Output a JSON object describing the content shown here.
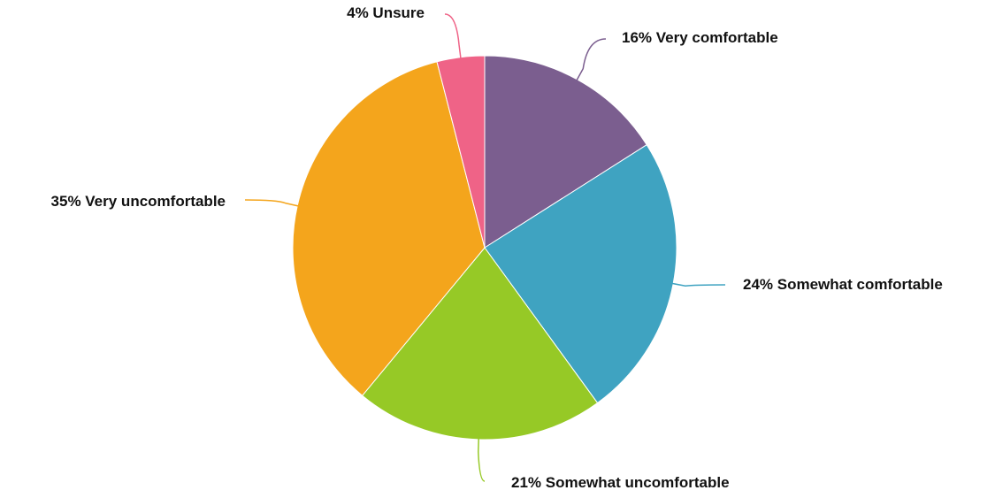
{
  "chart_data": {
    "type": "pie",
    "title": "",
    "start_angle_deg": 0,
    "direction": "clockwise",
    "slices": [
      {
        "name": "Very comfortable",
        "value": 16,
        "label": "16% Very comfortable",
        "color": "#7b5e8f"
      },
      {
        "name": "Somewhat comfortable",
        "value": 24,
        "label": "24% Somewhat comfortable",
        "color": "#3fa3c1"
      },
      {
        "name": "Somewhat uncomfortable",
        "value": 21,
        "label": "21% Somewhat uncomfortable",
        "color": "#96c926"
      },
      {
        "name": "Very uncomfortable",
        "value": 35,
        "label": "35% Very uncomfortable",
        "color": "#f4a51c"
      },
      {
        "name": "Unsure",
        "value": 4,
        "label": "4% Unsure",
        "color": "#ef6387"
      }
    ]
  }
}
